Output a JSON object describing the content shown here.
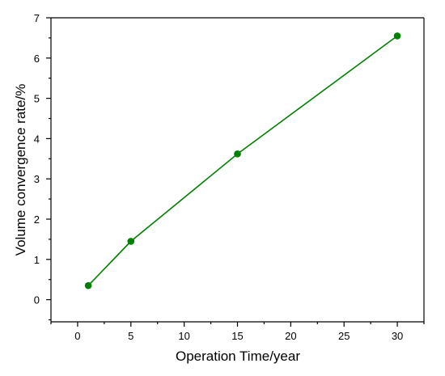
{
  "chart_data": {
    "type": "line",
    "xlabel": "Operation Time/year",
    "ylabel": "Volume convergence rate/%",
    "xlim": [
      -2.5,
      32.5
    ],
    "ylim": [
      -0.55,
      7
    ],
    "x_ticks": [
      0,
      5,
      10,
      15,
      20,
      25,
      30
    ],
    "y_ticks": [
      0,
      1,
      2,
      3,
      4,
      5,
      6,
      7
    ],
    "grid": false,
    "frame": "left-and-bottom axes with top and right frame lines",
    "series": [
      {
        "color": "#008000",
        "marker": "circle",
        "x": [
          1,
          5,
          15,
          30
        ],
        "y": [
          0.35,
          1.45,
          3.62,
          6.55
        ]
      }
    ]
  }
}
